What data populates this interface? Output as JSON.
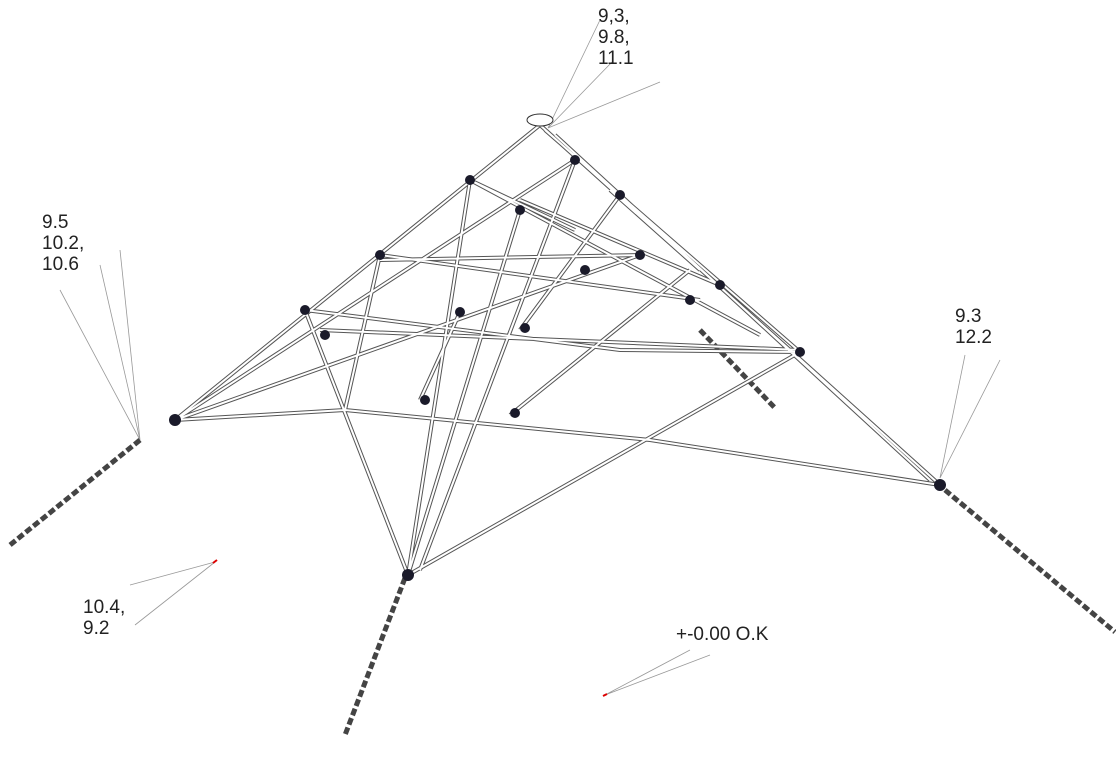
{
  "annotations": [
    {
      "lines": [
        "9,3,",
        "9.8,",
        "11.1"
      ]
    },
    {
      "lines": [
        "9.5",
        "10.2,",
        "10.6"
      ]
    },
    {
      "lines": [
        "9.3",
        "12.2"
      ]
    },
    {
      "lines": [
        "10.4,",
        "9.2"
      ]
    },
    {
      "lines": [
        "+-0.00 O.K"
      ]
    }
  ]
}
